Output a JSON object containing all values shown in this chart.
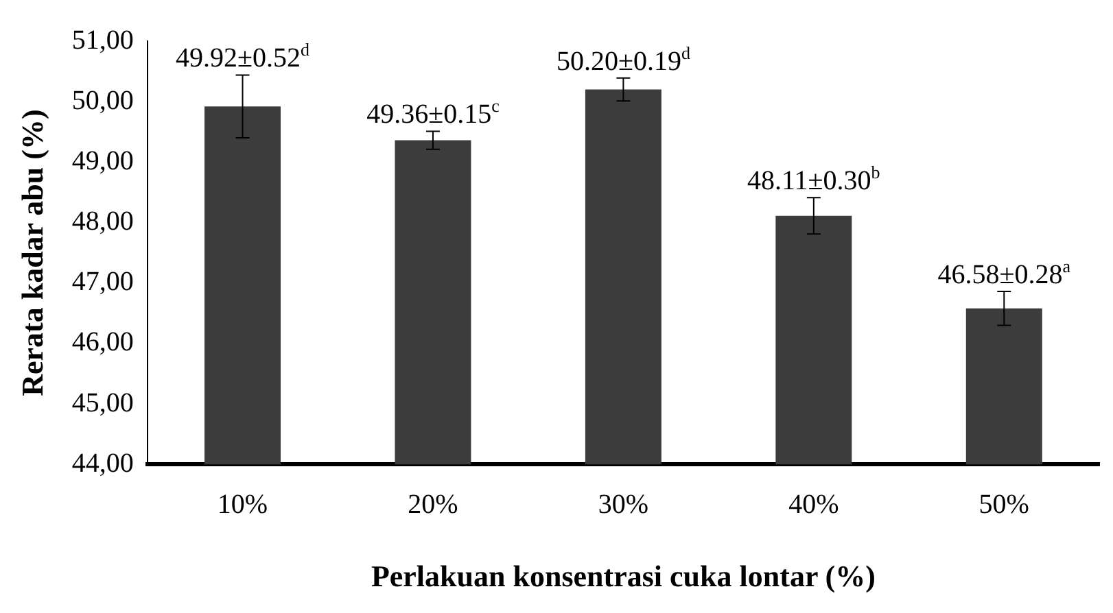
{
  "chart_data": {
    "type": "bar",
    "xlabel": "Perlakuan konsentrasi cuka lontar (%)",
    "ylabel": "Rerata kadar abu (%)",
    "categories": [
      "10%",
      "20%",
      "30%",
      "40%",
      "50%"
    ],
    "values": [
      49.92,
      49.36,
      50.2,
      48.11,
      46.58
    ],
    "errors": [
      0.52,
      0.15,
      0.19,
      0.3,
      0.28
    ],
    "value_labels": [
      "49.92±0.52$^{d}$",
      "49.36±0.15$^{c}$",
      "50.20±0.19$^{d}$",
      "48.11±0.30$^{b}$",
      "46.58±0.28$^{a}$"
    ],
    "color": "#3c3c3c",
    "ylim": [
      44,
      51
    ],
    "yticks": [
      {
        "value": 44,
        "label": "44,00"
      },
      {
        "value": 45,
        "label": "45,00"
      },
      {
        "value": 46,
        "label": "46,00"
      },
      {
        "value": 47,
        "label": "47,00"
      },
      {
        "value": 48,
        "label": "48,00"
      },
      {
        "value": 49,
        "label": "49,00"
      },
      {
        "value": 50,
        "label": "50,00"
      },
      {
        "value": 51,
        "label": "51,00"
      }
    ],
    "grid": false,
    "legend": false
  }
}
